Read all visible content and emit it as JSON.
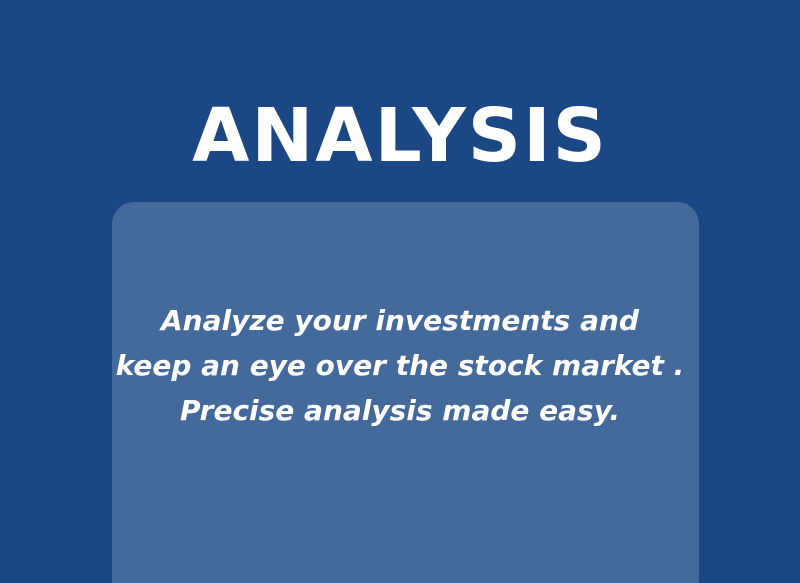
{
  "title": "ANALYSIS",
  "card": {
    "lines": [
      "Analyze your investments and",
      "keep an eye over the stock market .",
      "Precise analysis made easy."
    ]
  },
  "colors": {
    "background": "#1c4785",
    "card": "#44699b",
    "text": "#ffffff"
  }
}
